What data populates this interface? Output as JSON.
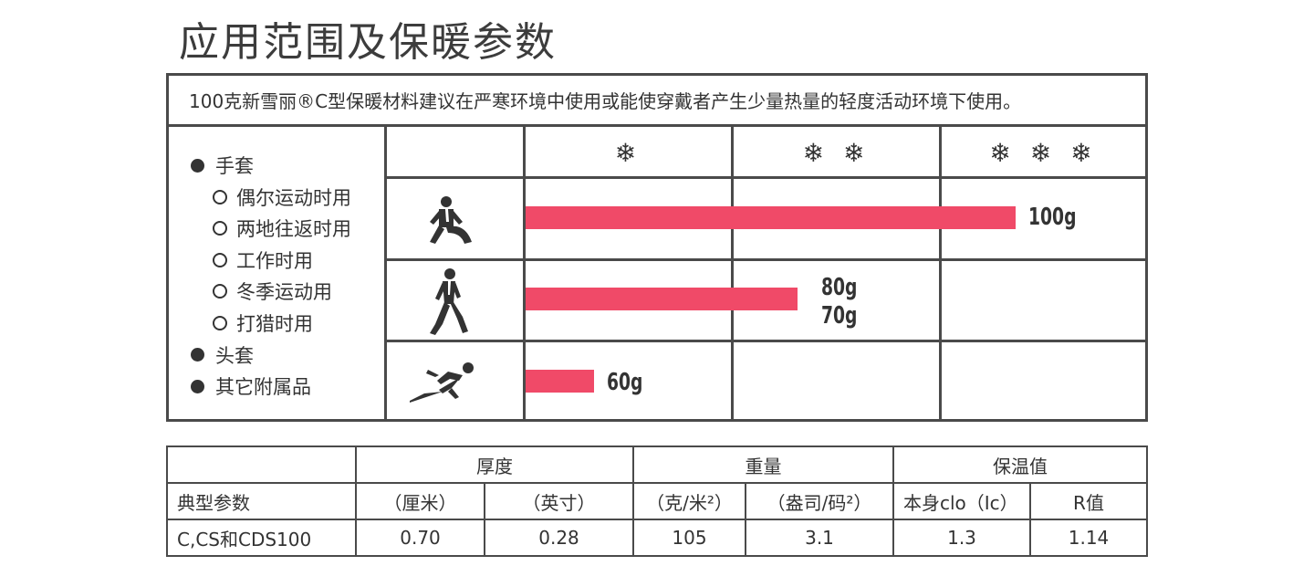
{
  "title": "应用范围及保暖参数",
  "intro": "100克新雪丽®C型保暖材料建议在严寒环境中使用或能使穿戴者产生少量热量的轻度活动环境下使用。",
  "list": [
    {
      "label": "手套",
      "level": 1
    },
    {
      "label": "偶尔运动时用",
      "level": 2
    },
    {
      "label": "两地往返时用",
      "level": 2
    },
    {
      "label": "工作时用",
      "level": 2
    },
    {
      "label": "冬季运动用",
      "level": 2
    },
    {
      "label": "打猎时用",
      "level": 2
    },
    {
      "label": "头套",
      "level": 1
    },
    {
      "label": "其它附属品",
      "level": 1
    }
  ],
  "snow_levels": [
    "❄",
    "❄ ❄",
    "❄ ❄ ❄"
  ],
  "activity_bars": [
    {
      "icon": "sitting-person-icon",
      "labels": [
        "100g"
      ],
      "fill_fraction": 1.0
    },
    {
      "icon": "walking-person-icon",
      "labels": [
        "80g",
        "70g"
      ],
      "fill_fraction": 0.555
    },
    {
      "icon": "running-person-icon",
      "labels": [
        "60g"
      ],
      "fill_fraction": 0.14
    }
  ],
  "params_table": {
    "group_headers": [
      "",
      "厚度",
      "重量",
      "保温值"
    ],
    "sub_headers": [
      "典型参数",
      "（厘米）",
      "（英寸）",
      "（克/米²）",
      "（盎司/码²）",
      "本身clo（Ic）",
      "R值"
    ],
    "rows": [
      [
        "C,CS和CDS100",
        "0.70",
        "0.28",
        "105",
        "3.1",
        "1.3",
        "1.14"
      ]
    ]
  },
  "colors": {
    "bar": "#f04a68",
    "border": "#4a4a4a",
    "text": "#333333"
  }
}
